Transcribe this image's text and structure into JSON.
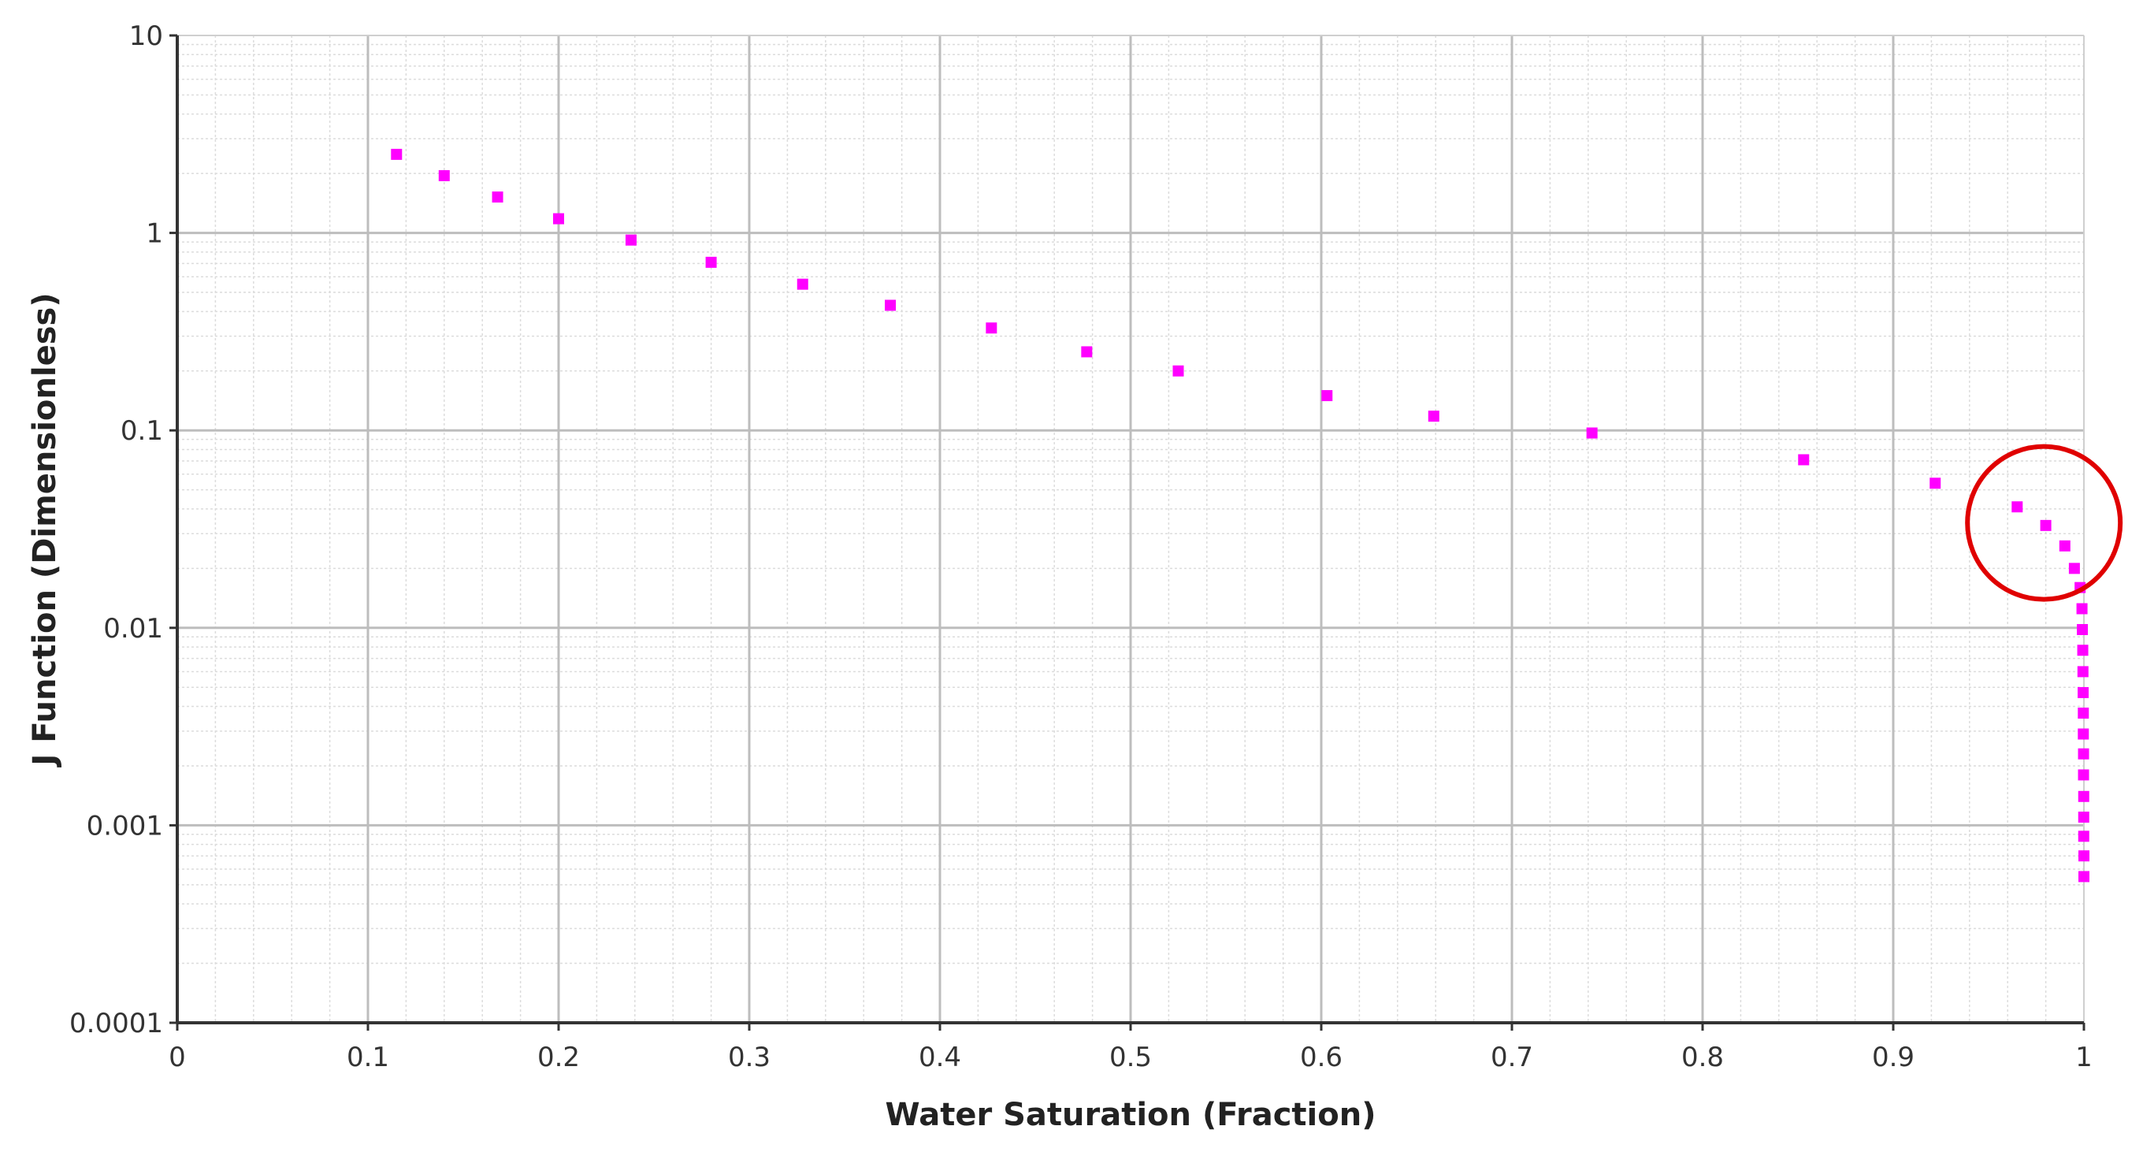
{
  "chart_data": {
    "type": "scatter",
    "title": "",
    "xlabel": "Water Saturation (Fraction)",
    "ylabel": "J Function (Dimensionless)",
    "xlim": [
      0,
      1
    ],
    "ylim": [
      0.0001,
      10
    ],
    "yscale": "log",
    "grid": true,
    "legend": "none",
    "x_ticks": [
      "0",
      "0.1",
      "0.2",
      "0.3",
      "0.4",
      "0.5",
      "0.6",
      "0.7",
      "0.8",
      "0.9",
      "1"
    ],
    "y_ticks": [
      "0.0001",
      "0.001",
      "0.01",
      "0.1",
      "1",
      "10"
    ],
    "colors": {
      "points": "#ff00ff",
      "highlight": "#e00000",
      "grid_major": "#bdbdbd",
      "grid_minor": "#dcdcdc",
      "axis": "#333333"
    },
    "series": [
      {
        "x": [
          0.115,
          0.14,
          0.168,
          0.2,
          0.238,
          0.28,
          0.328,
          0.374,
          0.427,
          0.477,
          0.525,
          0.603,
          0.659,
          0.742,
          0.853,
          0.922,
          0.965,
          0.98,
          0.99,
          0.995,
          0.998,
          0.999,
          0.9992,
          0.9994,
          0.9995,
          0.9996,
          0.9997,
          0.9997,
          0.9998,
          0.9998,
          0.9999,
          0.9999,
          0.9999,
          1.0,
          1.0
        ],
        "y": [
          2.5,
          1.95,
          1.52,
          1.18,
          0.92,
          0.71,
          0.55,
          0.43,
          0.33,
          0.25,
          0.2,
          0.15,
          0.118,
          0.097,
          0.071,
          0.054,
          0.041,
          0.033,
          0.026,
          0.02,
          0.016,
          0.0125,
          0.0098,
          0.0077,
          0.006,
          0.0047,
          0.0037,
          0.0029,
          0.0023,
          0.0018,
          0.0014,
          0.0011,
          0.00088,
          0.0007,
          0.00055
        ]
      }
    ],
    "annotations": [
      {
        "type": "circle",
        "x": 0.979,
        "y": 0.034
      }
    ]
  }
}
